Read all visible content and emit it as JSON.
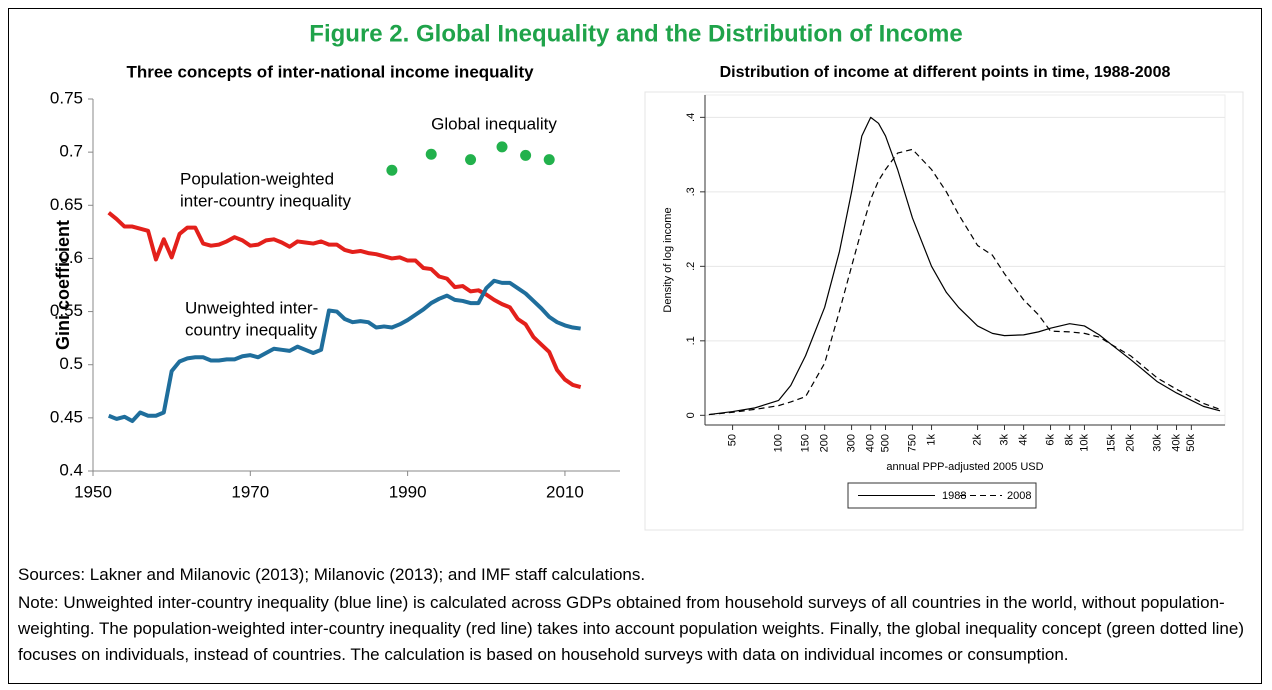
{
  "title": "Figure 2. Global Inequality and the Distribution of Income",
  "chart_data": [
    {
      "type": "line",
      "title": "Three concepts of inter-national income inequality",
      "ylabel": "Gini coefficient",
      "xlim": [
        1950,
        2017
      ],
      "ylim": [
        0.4,
        0.75
      ],
      "xticks": [
        1950,
        1970,
        1990,
        2010
      ],
      "yticks": [
        0.4,
        0.45,
        0.5,
        0.55,
        0.6,
        0.65,
        0.7,
        0.75
      ],
      "x": [
        1952,
        1953,
        1954,
        1955,
        1956,
        1957,
        1958,
        1959,
        1960,
        1961,
        1962,
        1963,
        1964,
        1965,
        1966,
        1967,
        1968,
        1969,
        1970,
        1971,
        1972,
        1973,
        1974,
        1975,
        1976,
        1977,
        1978,
        1979,
        1980,
        1981,
        1982,
        1983,
        1984,
        1985,
        1986,
        1987,
        1988,
        1989,
        1990,
        1991,
        1992,
        1993,
        1994,
        1995,
        1996,
        1997,
        1998,
        1999,
        2000,
        2001,
        2002,
        2003,
        2004,
        2005,
        2006,
        2007,
        2008,
        2009,
        2010,
        2011,
        2012
      ],
      "series": [
        {
          "label": [
            "Population-weighted",
            "inter-country inequality"
          ],
          "color": "#e3201b",
          "style": "line",
          "values": [
            0.643,
            0.637,
            0.63,
            0.63,
            0.628,
            0.626,
            0.599,
            0.618,
            0.601,
            0.623,
            0.629,
            0.629,
            0.614,
            0.612,
            0.613,
            0.616,
            0.62,
            0.617,
            0.612,
            0.613,
            0.617,
            0.618,
            0.615,
            0.611,
            0.616,
            0.615,
            0.614,
            0.616,
            0.613,
            0.613,
            0.608,
            0.606,
            0.607,
            0.605,
            0.604,
            0.602,
            0.6,
            0.601,
            0.598,
            0.598,
            0.591,
            0.59,
            0.583,
            0.581,
            0.573,
            0.574,
            0.569,
            0.57,
            0.566,
            0.561,
            0.557,
            0.554,
            0.543,
            0.538,
            0.526,
            0.519,
            0.512,
            0.495,
            0.486,
            0.481,
            0.479
          ]
        },
        {
          "label": [
            "Unweighted inter-",
            "country inequality"
          ],
          "color": "#1f6e9c",
          "style": "line",
          "values": [
            0.452,
            0.449,
            0.451,
            0.447,
            0.455,
            0.452,
            0.452,
            0.455,
            0.494,
            0.503,
            0.506,
            0.507,
            0.507,
            0.504,
            0.504,
            0.505,
            0.505,
            0.508,
            0.509,
            0.507,
            0.511,
            0.515,
            0.514,
            0.513,
            0.517,
            0.514,
            0.511,
            0.514,
            0.551,
            0.55,
            0.543,
            0.54,
            0.541,
            0.54,
            0.535,
            0.536,
            0.535,
            0.538,
            0.542,
            0.547,
            0.552,
            0.558,
            0.562,
            0.565,
            0.561,
            0.56,
            0.558,
            0.558,
            0.572,
            0.579,
            0.577,
            0.577,
            0.572,
            0.567,
            0.56,
            0.553,
            0.545,
            0.54,
            0.537,
            0.535,
            0.534
          ]
        },
        {
          "label": [
            "Global inequality"
          ],
          "color": "#22b14c",
          "style": "dots",
          "x": [
            1988,
            1993,
            1998,
            2002,
            2005,
            2008
          ],
          "values": [
            0.683,
            0.698,
            0.693,
            0.705,
            0.697,
            0.693
          ]
        }
      ]
    },
    {
      "type": "line",
      "title": "Distribution of income at different points in time, 1988-2008",
      "xlabel": "annual PPP-adjusted 2005 USD",
      "ylabel": "Density of log income",
      "xscale": "log",
      "grid": true,
      "legend": "bottom",
      "xlim": [
        33,
        83000
      ],
      "ylim": [
        -0.013,
        0.43
      ],
      "xticks": [
        50,
        100,
        150,
        200,
        300,
        400,
        500,
        750,
        {
          "value": 1000,
          "label": "1k"
        },
        {
          "value": 2000,
          "label": "2k"
        },
        {
          "value": 3000,
          "label": "3k"
        },
        {
          "value": 4000,
          "label": "4k"
        },
        {
          "value": 6000,
          "label": "6k"
        },
        {
          "value": 8000,
          "label": "8k"
        },
        {
          "value": 10000,
          "label": "10k"
        },
        {
          "value": 15000,
          "label": "15k"
        },
        {
          "value": 20000,
          "label": "20k"
        },
        {
          "value": 30000,
          "label": "30k"
        },
        {
          "value": 40000,
          "label": "40k"
        },
        {
          "value": 50000,
          "label": "50k"
        }
      ],
      "yticks": [
        0,
        {
          "value": 0.1,
          "label": ".1"
        },
        {
          "value": 0.2,
          "label": ".2"
        },
        {
          "value": 0.3,
          "label": ".3"
        },
        {
          "value": 0.4,
          "label": ".4"
        }
      ],
      "x": [
        35,
        50,
        70,
        100,
        120,
        150,
        200,
        250,
        300,
        350,
        400,
        450,
        500,
        600,
        750,
        1000,
        1250,
        1500,
        2000,
        2500,
        3000,
        4000,
        5000,
        6000,
        8000,
        10000,
        12500,
        15000,
        20000,
        30000,
        40000,
        60000,
        77000
      ],
      "series": [
        {
          "name": "1988",
          "color": "#000000",
          "dash": false,
          "values": [
            0.001,
            0.005,
            0.01,
            0.02,
            0.04,
            0.08,
            0.145,
            0.22,
            0.3,
            0.375,
            0.4,
            0.392,
            0.375,
            0.33,
            0.265,
            0.2,
            0.165,
            0.145,
            0.12,
            0.11,
            0.107,
            0.108,
            0.112,
            0.117,
            0.123,
            0.12,
            0.108,
            0.095,
            0.075,
            0.045,
            0.03,
            0.012,
            0.006
          ]
        },
        {
          "name": "2008",
          "color": "#000000",
          "dash": true,
          "values": [
            0.001,
            0.004,
            0.008,
            0.013,
            0.018,
            0.025,
            0.07,
            0.14,
            0.2,
            0.25,
            0.29,
            0.315,
            0.33,
            0.352,
            0.357,
            0.33,
            0.3,
            0.27,
            0.228,
            0.215,
            0.19,
            0.155,
            0.135,
            0.113,
            0.112,
            0.11,
            0.105,
            0.095,
            0.08,
            0.05,
            0.035,
            0.016,
            0.008
          ]
        }
      ]
    }
  ],
  "sources": "Sources: Lakner and Milanovic (2013); Milanovic (2013); and IMF staff calculations.",
  "note": "Note: Unweighted inter-country inequality (blue line) is calculated across GDPs obtained from household surveys of all countries in the world, without population-weighting. The population-weighted inter-country inequality (red line) takes into account population weights. Finally, the global inequality concept (green dotted line) focuses on individuals, instead of countries. The calculation is based on household surveys with data on individual incomes or consumption."
}
